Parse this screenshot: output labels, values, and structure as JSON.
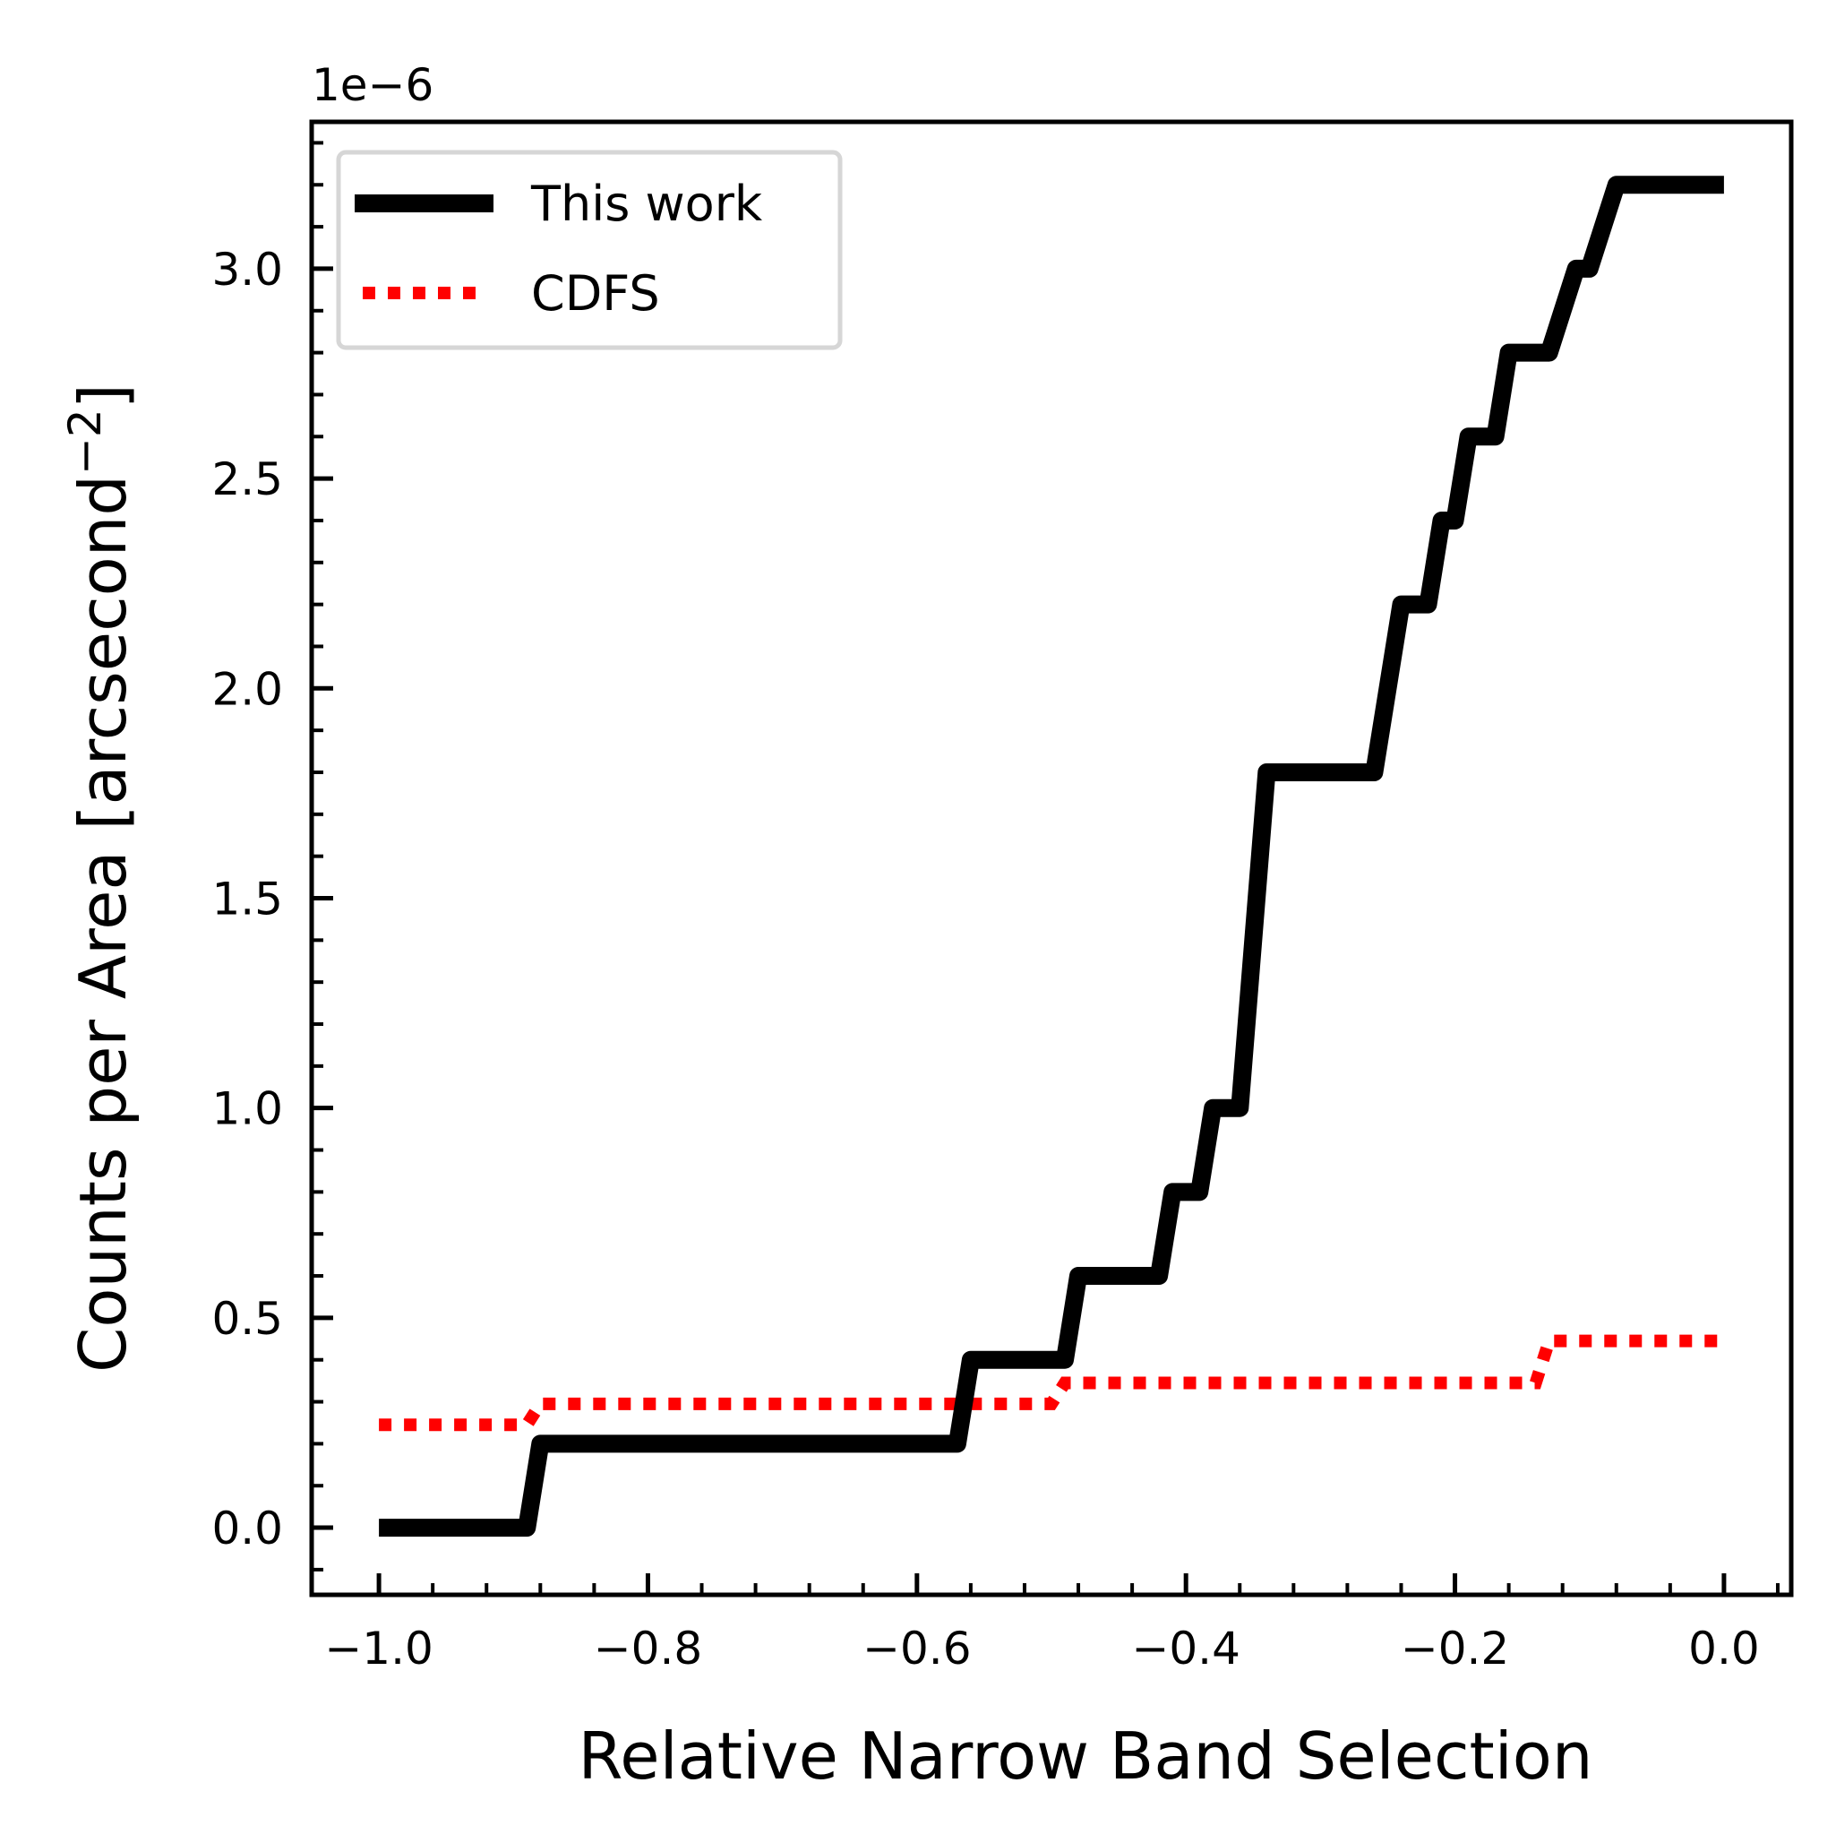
{
  "chart_data": {
    "type": "line",
    "title": "",
    "xlabel": "Relative Narrow Band Selection",
    "ylabel": "Counts per Area [arcsecond",
    "ylabel_sup": "−2",
    "ylabel_close": "]",
    "y_offset_label": "1e−6",
    "xlim": [
      -1.05,
      0.05
    ],
    "ylim": [
      -0.16,
      3.35
    ],
    "x_ticks": [
      -1.0,
      -0.8,
      -0.6,
      -0.4,
      -0.2,
      0.0
    ],
    "x_tick_labels": [
      "−1.0",
      "−0.8",
      "−0.6",
      "−0.4",
      "−0.2",
      "0.0"
    ],
    "y_ticks": [
      0.0,
      0.5,
      1.0,
      1.5,
      2.0,
      2.5,
      3.0
    ],
    "y_tick_labels": [
      "0.0",
      "0.5",
      "1.0",
      "1.5",
      "2.0",
      "2.5",
      "3.0"
    ],
    "grid": false,
    "legend_position": "top-left",
    "series": [
      {
        "name": "This work",
        "color": "#000000",
        "style": "solid",
        "x": [
          -1.0,
          -0.89,
          -0.88,
          -0.57,
          -0.56,
          -0.49,
          -0.48,
          -0.42,
          -0.41,
          -0.39,
          -0.38,
          -0.36,
          -0.35,
          -0.34,
          -0.33,
          -0.26,
          -0.24,
          -0.22,
          -0.21,
          -0.2,
          -0.19,
          -0.17,
          -0.16,
          -0.14,
          -0.13,
          -0.11,
          -0.1,
          -0.08,
          -0.07,
          -0.05,
          -0.04,
          0.0
        ],
        "y": [
          0.0,
          0.0,
          0.2,
          0.2,
          0.4,
          0.4,
          0.6,
          0.6,
          0.8,
          0.8,
          1.0,
          1.0,
          1.4,
          1.8,
          1.8,
          1.8,
          2.2,
          2.2,
          2.4,
          2.4,
          2.6,
          2.6,
          2.8,
          2.8,
          2.8,
          3.0,
          3.0,
          3.2,
          3.2,
          3.2,
          3.2,
          3.2
        ]
      },
      {
        "name": "CDFS",
        "color": "#ff0000",
        "style": "dotted",
        "x": [
          -1.0,
          -0.89,
          -0.88,
          -0.5,
          -0.49,
          -0.14,
          -0.13,
          0.0
        ],
        "y": [
          0.245,
          0.245,
          0.295,
          0.295,
          0.345,
          0.345,
          0.445,
          0.445
        ]
      }
    ]
  }
}
